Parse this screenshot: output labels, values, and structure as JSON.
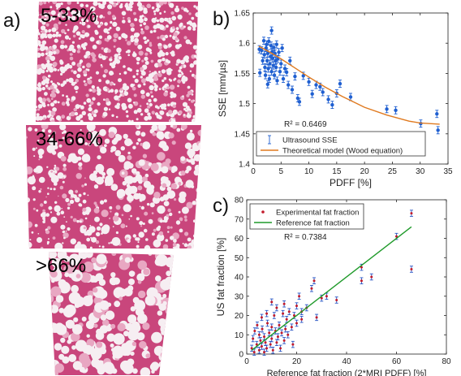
{
  "panels": {
    "a": {
      "letter": "a)",
      "images": [
        {
          "label": "5-33%",
          "style": "fine-vacuoles"
        },
        {
          "label": "34-66%",
          "style": "mixed-vacuoles"
        },
        {
          "label": ">66%",
          "style": "large-vacuoles"
        }
      ],
      "colors": {
        "tissue": "#c9467c",
        "tissue_light": "#e8a7c2",
        "fat": "#f6eef2"
      }
    },
    "b": {
      "letter": "b)"
    },
    "c": {
      "letter": "c)"
    }
  },
  "chart_data": [
    {
      "id": "b",
      "type": "scatter",
      "xlabel": "PDFF [%]",
      "ylabel": "SSE [mm/µs]",
      "xlim": [
        0,
        35
      ],
      "ylim": [
        1.4,
        1.65
      ],
      "xticks": [
        "0",
        "5",
        "10",
        "15",
        "20",
        "25",
        "30",
        "35"
      ],
      "yticks": [
        "1.4",
        "1.45",
        "1.5",
        "1.55",
        "1.6",
        "1.65"
      ],
      "grid": false,
      "legend_position": "bottom-left",
      "annotation": "R² = 0.6469",
      "series": [
        {
          "name": "Ultrasound SSE",
          "kind": "errorbar",
          "color": "#1f5fd1",
          "points": [
            [
              1.2,
              1.551
            ],
            [
              1.5,
              1.588
            ],
            [
              1.7,
              1.571
            ],
            [
              1.9,
              1.604
            ],
            [
              2.0,
              1.581
            ],
            [
              2.1,
              1.56
            ],
            [
              2.2,
              1.547
            ],
            [
              2.3,
              1.592
            ],
            [
              2.4,
              1.598
            ],
            [
              2.5,
              1.571
            ],
            [
              2.6,
              1.583
            ],
            [
              2.7,
              1.558
            ],
            [
              2.8,
              1.603
            ],
            [
              2.9,
              1.541
            ],
            [
              3.0,
              1.566
            ],
            [
              3.1,
              1.578
            ],
            [
              3.2,
              1.596
            ],
            [
              3.3,
              1.553
            ],
            [
              3.4,
              1.586
            ],
            [
              3.5,
              1.575
            ],
            [
              3.6,
              1.563
            ],
            [
              3.7,
              1.593
            ],
            [
              3.8,
              1.547
            ],
            [
              3.9,
              1.583
            ],
            [
              4.0,
              1.571
            ],
            [
              4.1,
              1.56
            ],
            [
              4.2,
              1.598
            ],
            [
              4.3,
              1.538
            ],
            [
              4.4,
              1.574
            ],
            [
              4.6,
              1.585
            ],
            [
              4.8,
              1.553
            ],
            [
              5.0,
              1.566
            ],
            [
              5.2,
              1.592
            ],
            [
              5.4,
              1.541
            ],
            [
              5.7,
              1.558
            ],
            [
              6.0,
              1.552
            ],
            [
              6.3,
              1.531
            ],
            [
              6.6,
              1.571
            ],
            [
              7.0,
              1.523
            ],
            [
              7.5,
              1.545
            ],
            [
              8.0,
              1.509
            ],
            [
              8.3,
              1.503
            ],
            [
              9.0,
              1.546
            ],
            [
              10.0,
              1.536
            ],
            [
              10.6,
              1.516
            ],
            [
              11.3,
              1.531
            ],
            [
              12.0,
              1.528
            ],
            [
              12.5,
              1.519
            ],
            [
              13.5,
              1.507
            ],
            [
              14.2,
              1.498
            ],
            [
              15.0,
              1.517
            ],
            [
              15.6,
              1.533
            ],
            [
              17.5,
              1.511
            ],
            [
              24.0,
              1.491
            ],
            [
              25.6,
              1.489
            ],
            [
              30.1,
              1.467
            ],
            [
              33.0,
              1.483
            ],
            [
              33.2,
              1.456
            ],
            [
              3.3,
              1.621
            ],
            [
              2.6,
              1.532
            ],
            [
              1.1,
              1.59
            ]
          ],
          "error": 0.006
        },
        {
          "name": "Theoretical model (Wood equation)",
          "kind": "line",
          "color": "#e07a1f",
          "points": [
            [
              1,
              1.595
            ],
            [
              3,
              1.585
            ],
            [
              5,
              1.574
            ],
            [
              8,
              1.556
            ],
            [
              10,
              1.544
            ],
            [
              13,
              1.527
            ],
            [
              16,
              1.512
            ],
            [
              20,
              1.494
            ],
            [
              24,
              1.481
            ],
            [
              28,
              1.471
            ],
            [
              30,
              1.468
            ],
            [
              33.5,
              1.466
            ]
          ]
        }
      ]
    },
    {
      "id": "c",
      "type": "scatter",
      "xlabel": "Reference fat fraction (2*MRI PDFF) [%]",
      "ylabel": "US fat fraction [%]",
      "xlim": [
        0,
        80
      ],
      "ylim": [
        0,
        80
      ],
      "xticks": [
        "0",
        "20",
        "40",
        "60",
        "80"
      ],
      "yticks": [
        "0",
        "10",
        "20",
        "30",
        "40",
        "50",
        "60",
        "70",
        "80"
      ],
      "grid": false,
      "legend_position": "top-left",
      "annotation": "R² = 0.7384",
      "series": [
        {
          "name": "Experimental fat fraction",
          "kind": "errorbar",
          "color": "#c21a2b",
          "errcolor": "#2a56c4",
          "points": [
            [
              2,
              3
            ],
            [
              2.5,
              8
            ],
            [
              3,
              1
            ],
            [
              3.2,
              12
            ],
            [
              4,
              5
            ],
            [
              4.2,
              15
            ],
            [
              5,
              2
            ],
            [
              5,
              10
            ],
            [
              5.5,
              7
            ],
            [
              6,
              4
            ],
            [
              6.2,
              13
            ],
            [
              7,
              1
            ],
            [
              7,
              9
            ],
            [
              7.5,
              6
            ],
            [
              8,
              3
            ],
            [
              8.3,
              16
            ],
            [
              9,
              11
            ],
            [
              9.5,
              5
            ],
            [
              10,
              14
            ],
            [
              10,
              8
            ],
            [
              10.5,
              2
            ],
            [
              11,
              20
            ],
            [
              11.5,
              12
            ],
            [
              12,
              6
            ],
            [
              12,
              24
            ],
            [
              12.5,
              9
            ],
            [
              13,
              15
            ],
            [
              13.5,
              3
            ],
            [
              14,
              11
            ],
            [
              14.5,
              21
            ],
            [
              15,
              26
            ],
            [
              15,
              7
            ],
            [
              15.5,
              13
            ],
            [
              16,
              18
            ],
            [
              16.5,
              10
            ],
            [
              17,
              22
            ],
            [
              18,
              14
            ],
            [
              18.5,
              5
            ],
            [
              19,
              20
            ],
            [
              20,
              25
            ],
            [
              20,
              16
            ],
            [
              21,
              30
            ],
            [
              22,
              18
            ],
            [
              22,
              22
            ],
            [
              24,
              24
            ],
            [
              26,
              34
            ],
            [
              27,
              38
            ],
            [
              28,
              19
            ],
            [
              30,
              29
            ],
            [
              32,
              30
            ],
            [
              36,
              28
            ],
            [
              46,
              45
            ],
            [
              46,
              38
            ],
            [
              50,
              40
            ],
            [
              60,
              61
            ],
            [
              66,
              73
            ],
            [
              66,
              44
            ],
            [
              6,
              19
            ],
            [
              8,
              21
            ],
            [
              10,
              27
            ]
          ],
          "error": 1.6
        },
        {
          "name": "Reference fat fraction",
          "kind": "line",
          "color": "#1f9a2a",
          "points": [
            [
              2,
              2
            ],
            [
              66,
              66
            ]
          ]
        }
      ]
    }
  ]
}
